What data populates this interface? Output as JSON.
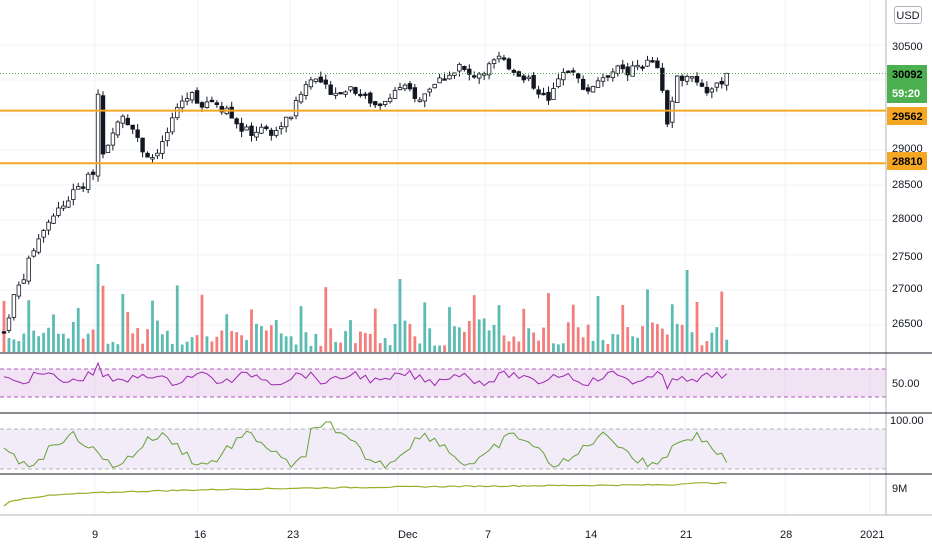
{
  "currency": "USD",
  "price_axis": {
    "ticks": [
      "30500",
      "29000",
      "28500",
      "28000",
      "27500",
      "27000",
      "26500"
    ],
    "last_price": "30092",
    "countdown": "59:20",
    "levels": [
      "29562",
      "28810"
    ]
  },
  "rsi_axis": {
    "tick": "50.00"
  },
  "stoch_axis": {
    "tick": "100.00"
  },
  "volume_axis": {
    "tick": "9M"
  },
  "time_axis": [
    "9",
    "16",
    "23",
    "Dec",
    "7",
    "14",
    "21",
    "28",
    "2021"
  ],
  "colors": {
    "up": "#26a69a",
    "down": "#ef5350",
    "candle": "#131722",
    "level": "#f5a623",
    "last_price": "#4caf50",
    "rsi": "#9c27b0",
    "rsi_band": "#e1bee7",
    "stoch": "#689f38",
    "stoch_band": "#ede7f6",
    "obv": "#9cad2a"
  },
  "chart_data": {
    "type": "candlestick",
    "ylim": [
      26000,
      31000
    ],
    "levels": [
      29562,
      28810
    ],
    "last_price": 30092,
    "close_path": [
      [
        0,
        26400
      ],
      [
        2,
        26900
      ],
      [
        4,
        27200
      ],
      [
        6,
        27600
      ],
      [
        8,
        27900
      ],
      [
        10,
        28100
      ],
      [
        12,
        28200
      ],
      [
        14,
        28400
      ],
      [
        16,
        28500
      ],
      [
        18,
        28700
      ],
      [
        19,
        29800
      ],
      [
        20,
        29000
      ],
      [
        21,
        29100
      ],
      [
        22,
        29300
      ],
      [
        23,
        29400
      ],
      [
        24,
        29500
      ],
      [
        26,
        29300
      ],
      [
        28,
        29000
      ],
      [
        30,
        28900
      ],
      [
        32,
        29100
      ],
      [
        34,
        29400
      ],
      [
        36,
        29700
      ],
      [
        38,
        29800
      ],
      [
        40,
        29650
      ],
      [
        42,
        29700
      ],
      [
        44,
        29600
      ],
      [
        46,
        29500
      ],
      [
        48,
        29300
      ],
      [
        50,
        29250
      ],
      [
        52,
        29300
      ],
      [
        54,
        29200
      ],
      [
        56,
        29350
      ],
      [
        58,
        29500
      ],
      [
        60,
        29800
      ],
      [
        62,
        30050
      ],
      [
        64,
        29950
      ],
      [
        66,
        29850
      ],
      [
        68,
        29800
      ],
      [
        70,
        29900
      ],
      [
        72,
        29800
      ],
      [
        74,
        29700
      ],
      [
        76,
        29600
      ],
      [
        78,
        29800
      ],
      [
        80,
        29900
      ],
      [
        82,
        29850
      ],
      [
        84,
        29700
      ],
      [
        86,
        29900
      ],
      [
        88,
        30000
      ],
      [
        90,
        30100
      ],
      [
        92,
        30200
      ],
      [
        94,
        30050
      ],
      [
        96,
        30100
      ],
      [
        98,
        30200
      ],
      [
        100,
        30300
      ],
      [
        102,
        30200
      ],
      [
        104,
        30100
      ],
      [
        106,
        30000
      ],
      [
        108,
        29850
      ],
      [
        110,
        29700
      ],
      [
        112,
        30000
      ],
      [
        114,
        30150
      ],
      [
        116,
        30000
      ],
      [
        118,
        29850
      ],
      [
        120,
        30000
      ],
      [
        122,
        30100
      ],
      [
        124,
        30150
      ],
      [
        126,
        30100
      ],
      [
        128,
        30200
      ],
      [
        130,
        30250
      ],
      [
        132,
        30200
      ],
      [
        134,
        29400
      ],
      [
        136,
        30000
      ],
      [
        138,
        30100
      ],
      [
        140,
        30000
      ],
      [
        142,
        29850
      ],
      [
        144,
        29900
      ],
      [
        146,
        30092
      ]
    ]
  }
}
